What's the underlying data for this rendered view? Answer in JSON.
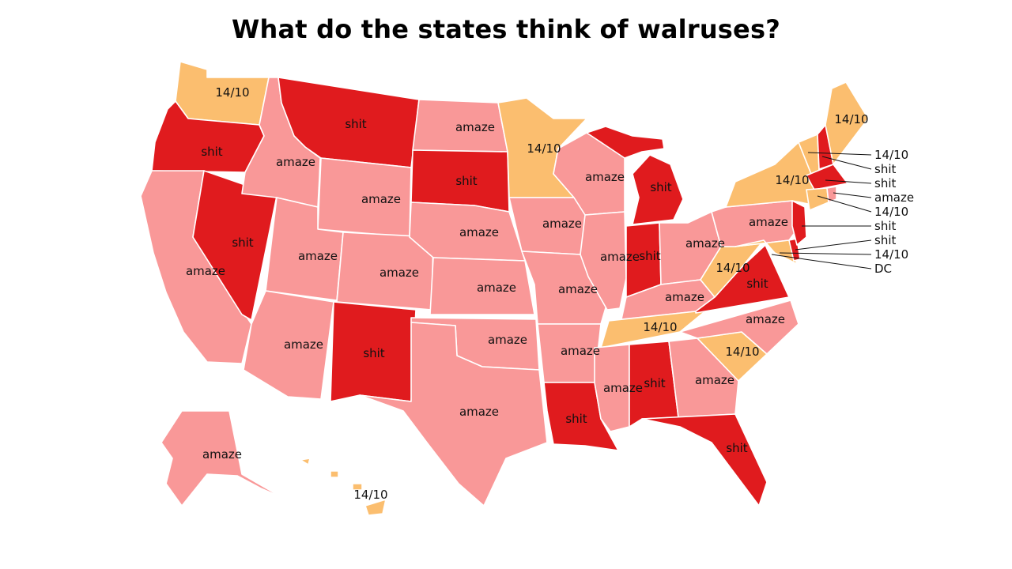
{
  "title": "What do the states think of walruses?",
  "colors": {
    "amaze": "#f99898",
    "shit": "#e01b1e",
    "14/10": "#fbbe6f"
  },
  "states": {
    "WA": "14/10",
    "OR": "shit",
    "CA": "amaze",
    "NV": "shit",
    "ID": "amaze",
    "MT": "shit",
    "WY": "amaze",
    "UT": "amaze",
    "AZ": "amaze",
    "CO": "amaze",
    "NM": "shit",
    "ND": "amaze",
    "SD": "shit",
    "NE": "amaze",
    "KS": "amaze",
    "OK": "amaze",
    "TX": "amaze",
    "MN": "14/10",
    "IA": "amaze",
    "MO": "amaze",
    "AR": "amaze",
    "LA": "shit",
    "WI": "amaze",
    "IL": "amaze",
    "MI": "shit",
    "IN": "shit",
    "OH": "amaze",
    "KY": "amaze",
    "TN": "14/10",
    "MS": "amaze",
    "AL": "shit",
    "GA": "amaze",
    "FL": "shit",
    "SC": "14/10",
    "NC": "amaze",
    "VA": "shit",
    "WV": "14/10",
    "PA": "amaze",
    "NY": "14/10",
    "AK": "amaze",
    "HI": "14/10",
    "ME": "14/10",
    "VT": "14/10",
    "NH": "shit",
    "MA": "shit",
    "RI": "amaze",
    "CT": "14/10",
    "NJ": "shit",
    "DE": "shit",
    "MD": "14/10",
    "DC": "DC"
  },
  "callouts": [
    "14/10",
    "shit",
    "shit",
    "amaze",
    "14/10",
    "shit",
    "shit",
    "14/10",
    "DC"
  ]
}
